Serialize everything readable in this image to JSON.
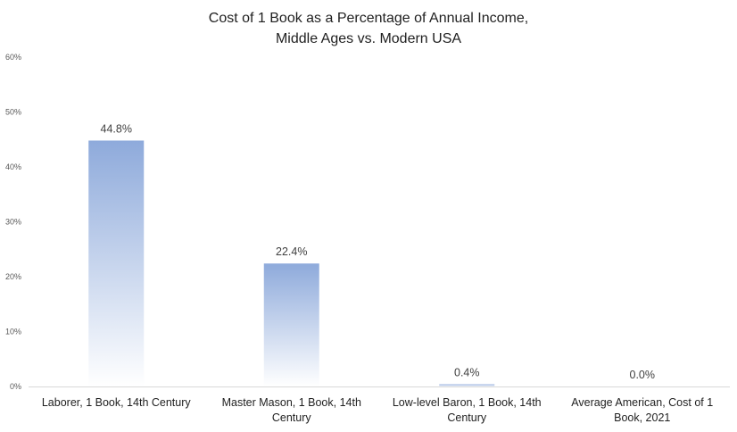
{
  "chart_data": {
    "type": "bar",
    "title": "Cost of 1 Book as a Percentage of Annual Income, Middle Ages vs. Modern USA",
    "title_lines": [
      "Cost of 1 Book as a Percentage of Annual Income,",
      "Middle Ages vs. Modern USA"
    ],
    "categories": [
      "Laborer, 1 Book, 14th Century",
      "Master Mason, 1 Book, 14th Century",
      "Low-level Baron, 1 Book, 14th Century",
      "Average American, Cost of 1 Book, 2021"
    ],
    "category_lines": [
      [
        "Laborer, 1 Book, 14th Century"
      ],
      [
        "Master Mason, 1 Book, 14th",
        "Century"
      ],
      [
        "Low-level Baron, 1 Book, 14th",
        "Century"
      ],
      [
        "Average American, Cost of 1",
        "Book, 2021"
      ]
    ],
    "values": [
      44.8,
      22.4,
      0.4,
      0.0
    ],
    "data_labels": [
      "44.8%",
      "22.4%",
      "0.4%",
      "0.0%"
    ],
    "y_ticks": [
      "0%",
      "10%",
      "20%",
      "30%",
      "40%",
      "50%",
      "60%"
    ],
    "ylim": [
      0,
      60
    ],
    "grid": false,
    "legend": "none",
    "colors": {
      "bar_top": "#8eaadb",
      "bar_bottom": "#ffffff",
      "axis": "#d9d9d9"
    }
  }
}
